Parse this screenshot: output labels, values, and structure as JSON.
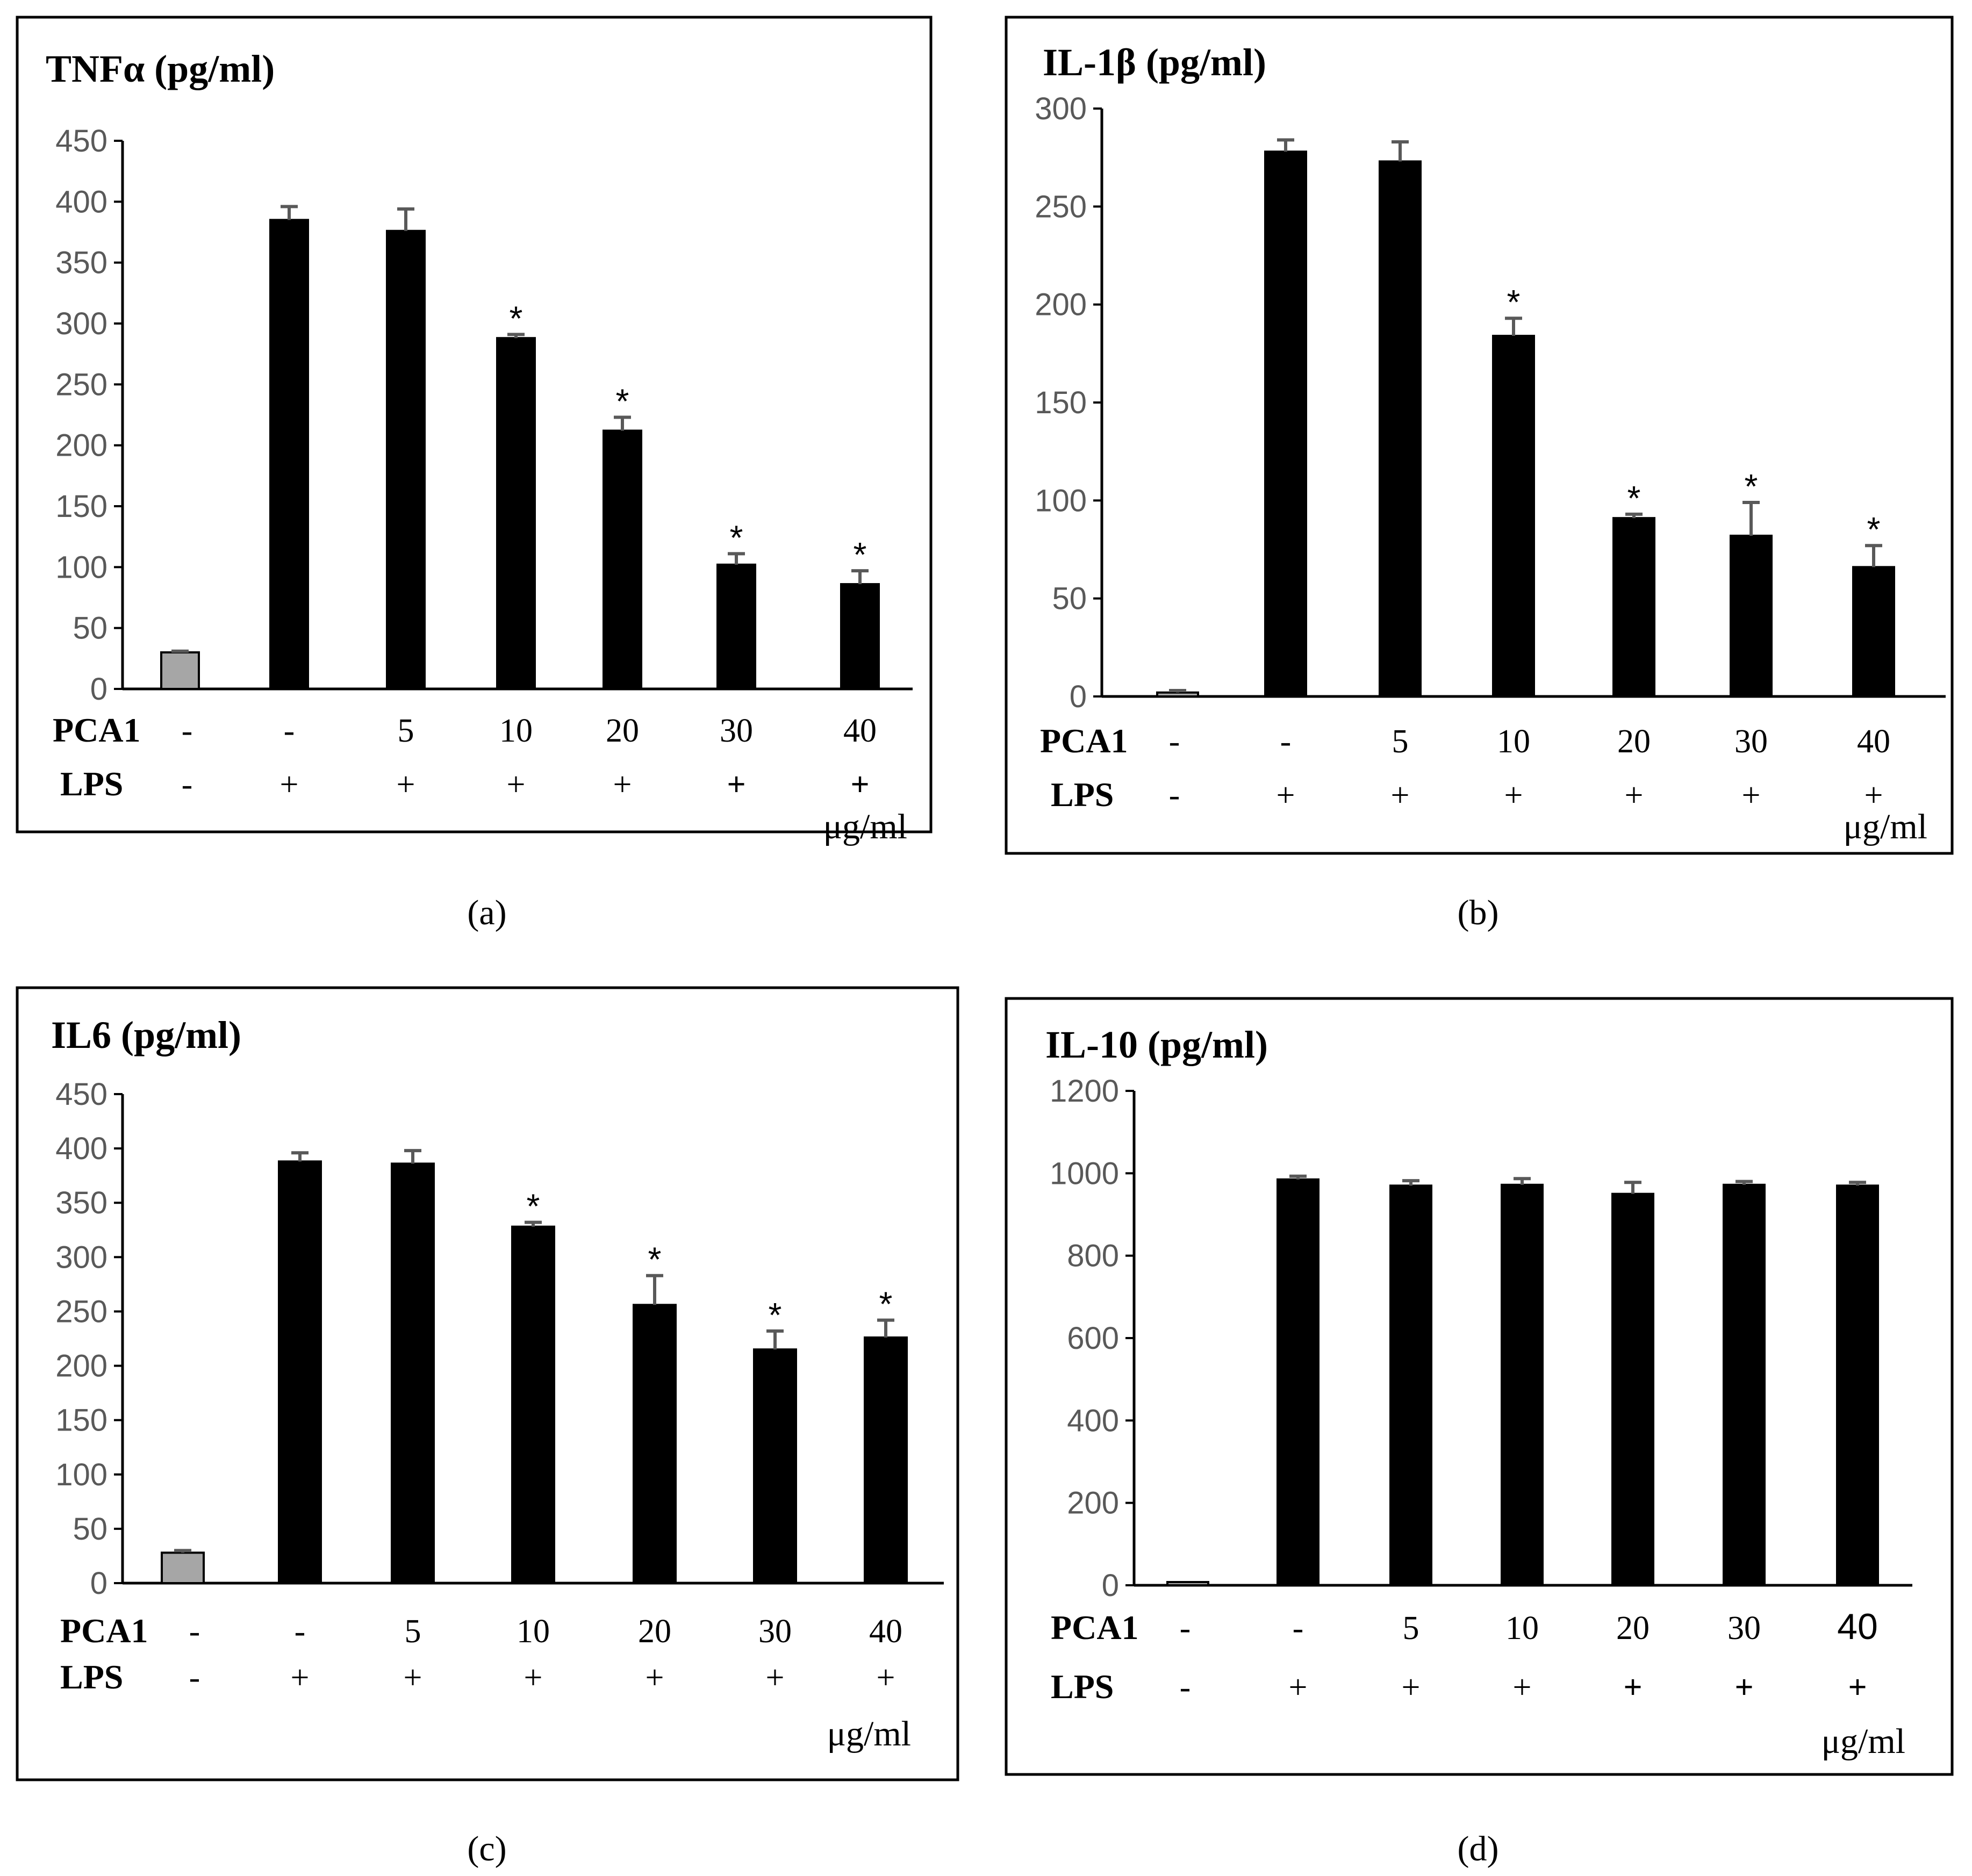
{
  "figure": {
    "colors": {
      "control_bar": "#a6a6a6",
      "treated_bar": "#000000",
      "axis_text": "#595959",
      "error_bar": "#595959"
    },
    "x_unit": "μg/ml",
    "row_labels": {
      "pca1": "PCA1",
      "lps": "LPS"
    }
  },
  "chart_data": [
    {
      "id": "a",
      "panel_label": "(a)",
      "type": "bar",
      "title": "TNFα (pg/ml)",
      "title_color": "#7f7f7f",
      "ylabel": "TNFα (pg/ml)",
      "xlabel": "μg/ml",
      "ylim": [
        0,
        450
      ],
      "yticks": [
        "0",
        "50",
        "100",
        "150",
        "200",
        "250",
        "300",
        "350",
        "400",
        "450"
      ],
      "categories": [
        "-/-",
        "-/+",
        "5/+",
        "10/+",
        "20/+",
        "30/+",
        "40/+"
      ],
      "pca1": [
        "-",
        "-",
        "5",
        "10",
        "20",
        "30",
        "40"
      ],
      "lps": [
        "-",
        "+",
        "+",
        "+",
        "+",
        "+",
        "+"
      ],
      "lps_bold": [
        false,
        false,
        false,
        false,
        false,
        true,
        true
      ],
      "values": [
        30,
        385,
        376,
        288,
        212,
        102,
        86
      ],
      "errors": [
        1,
        11,
        18,
        3,
        11,
        9,
        11
      ],
      "significant": [
        false,
        false,
        false,
        true,
        true,
        true,
        true
      ],
      "significance_marker": "*"
    },
    {
      "id": "b",
      "panel_label": "(b)",
      "type": "bar",
      "title": "IL-1β (pg/ml)",
      "title_color": "#000000",
      "ylabel": "IL-1β (pg/ml)",
      "xlabel": "μg/ml",
      "ylim": [
        0,
        300
      ],
      "yticks": [
        "0",
        "50",
        "100",
        "150",
        "200",
        "250",
        "300"
      ],
      "categories": [
        "-/-",
        "-/+",
        "5/+",
        "10/+",
        "20/+",
        "30/+",
        "40/+"
      ],
      "pca1": [
        "-",
        "-",
        "5",
        "10",
        "20",
        "30",
        "40"
      ],
      "lps": [
        "-",
        "+",
        "+",
        "+",
        "+",
        "+",
        "+"
      ],
      "lps_bold": [
        false,
        false,
        false,
        false,
        false,
        false,
        false
      ],
      "values": [
        2,
        278,
        273,
        184,
        91,
        82,
        66
      ],
      "errors": [
        1,
        6,
        10,
        9,
        2,
        17,
        11
      ],
      "significant": [
        false,
        false,
        false,
        true,
        true,
        true,
        true
      ],
      "significance_marker": "*"
    },
    {
      "id": "c",
      "panel_label": "(c)",
      "type": "bar",
      "title": "IL6 (pg/ml)",
      "title_color": "#000000",
      "ylabel": "IL6 (pg/ml)",
      "xlabel": "μg/ml",
      "ylim": [
        0,
        450
      ],
      "yticks": [
        "0",
        "50",
        "100",
        "150",
        "200",
        "250",
        "300",
        "350",
        "400",
        "450"
      ],
      "categories": [
        "-/-",
        "-/+",
        "5/+",
        "10/+",
        "20/+",
        "30/+",
        "40/+"
      ],
      "pca1": [
        "-",
        "-",
        "5",
        "10",
        "20",
        "30",
        "40"
      ],
      "lps": [
        "-",
        "+",
        "+",
        "+",
        "+",
        "+",
        "+"
      ],
      "lps_bold": [
        false,
        false,
        false,
        false,
        false,
        false,
        false
      ],
      "values": [
        28,
        388,
        386,
        328,
        256,
        215,
        226
      ],
      "errors": [
        2,
        8,
        12,
        4,
        27,
        17,
        16
      ],
      "significant": [
        false,
        false,
        false,
        true,
        true,
        true,
        true
      ],
      "significance_marker": "*"
    },
    {
      "id": "d",
      "panel_label": "(d)",
      "type": "bar",
      "title": "IL-10 (pg/ml)",
      "title_color": "#000000",
      "ylabel": "IL-10 (pg/ml)",
      "xlabel": "μg/ml",
      "ylim": [
        0,
        1200
      ],
      "yticks": [
        "0",
        "200",
        "400",
        "600",
        "800",
        "1000",
        "1200"
      ],
      "categories": [
        "-/-",
        "-/+",
        "5/+",
        "10/+",
        "20/+",
        "30/+",
        "40/+"
      ],
      "pca1": [
        "-",
        "-",
        "5",
        "10",
        "20",
        "30",
        "40"
      ],
      "lps": [
        "-",
        "+",
        "+",
        "+",
        "+",
        "+",
        "+"
      ],
      "lps_bold": [
        false,
        false,
        false,
        false,
        true,
        true,
        true
      ],
      "values": [
        0,
        985,
        970,
        972,
        950,
        972,
        970
      ],
      "errors": [
        0,
        8,
        12,
        15,
        28,
        8,
        8
      ],
      "significant": [
        false,
        false,
        false,
        false,
        false,
        false,
        false
      ],
      "significance_marker": "*"
    }
  ]
}
